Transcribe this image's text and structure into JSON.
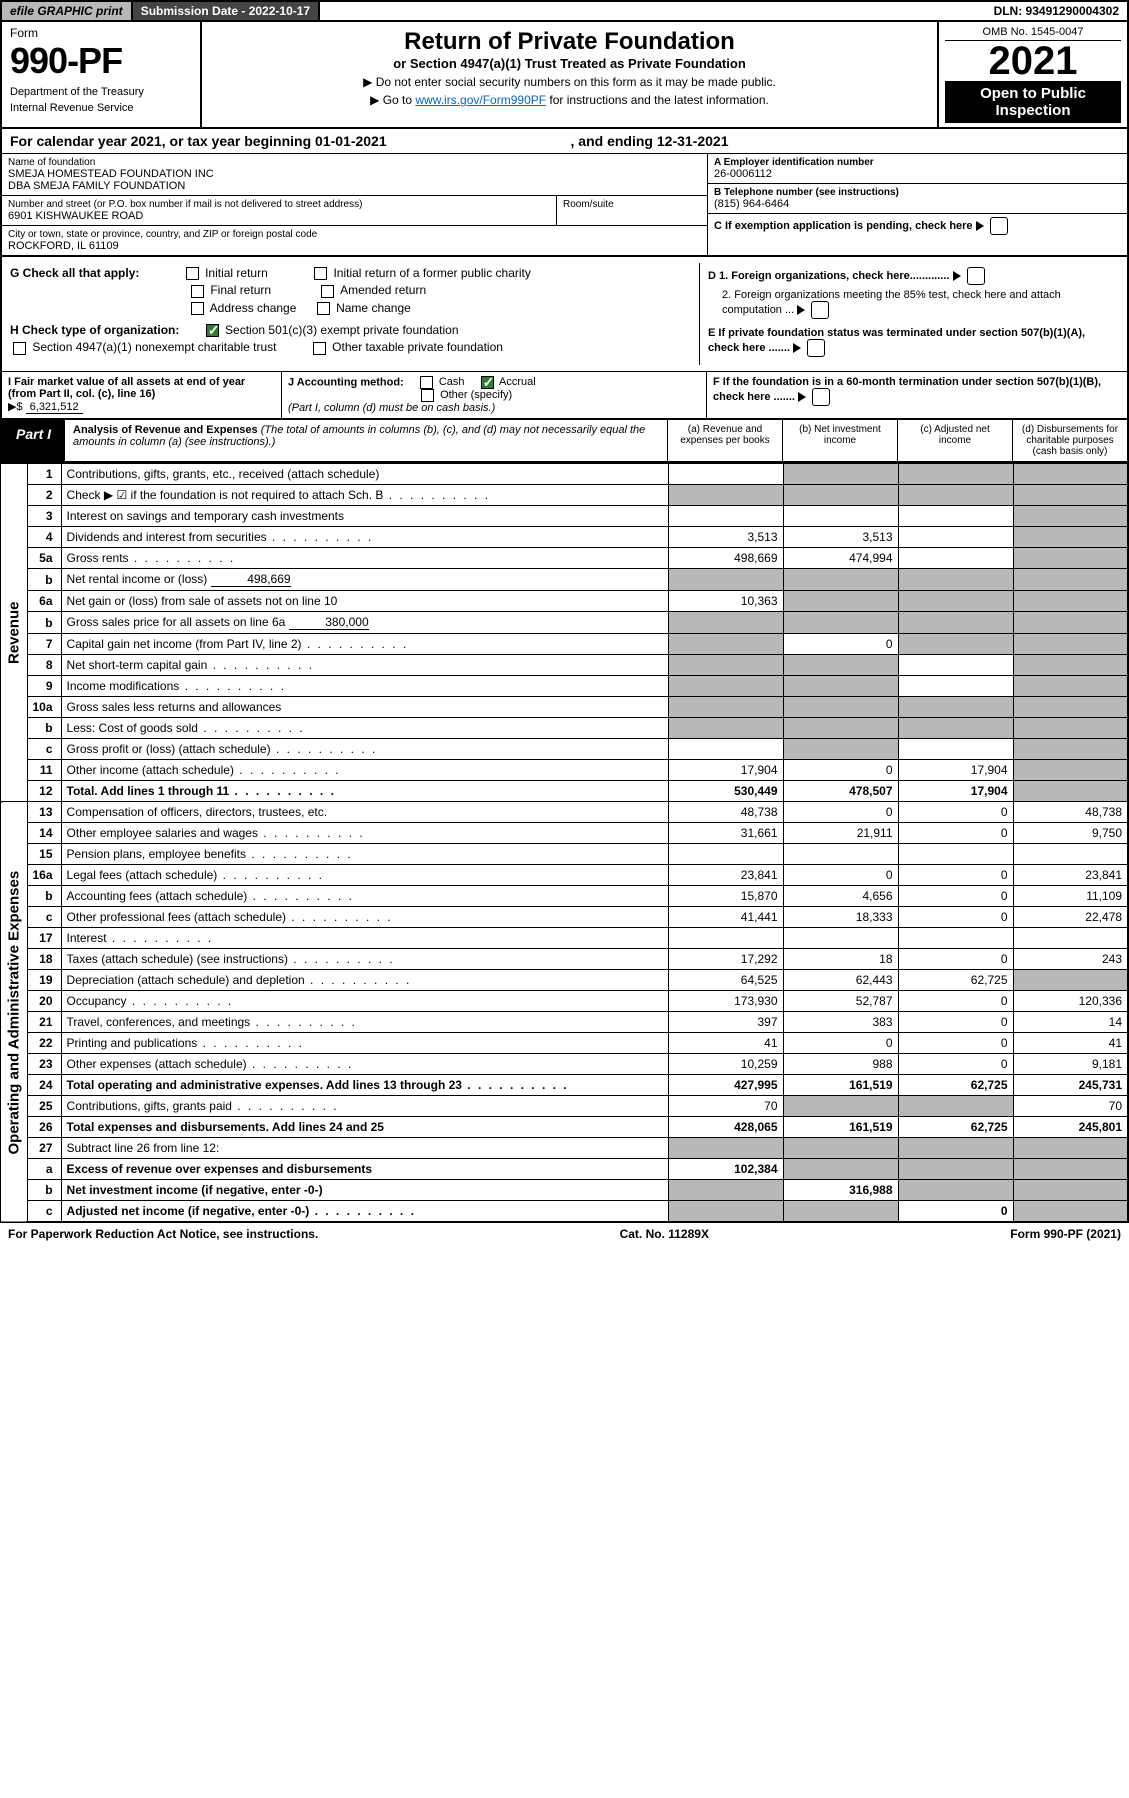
{
  "topbar": {
    "efile": "efile GRAPHIC print",
    "submission": "Submission Date - 2022-10-17",
    "dln": "DLN: 93491290004302"
  },
  "header": {
    "form_word": "Form",
    "form_num": "990-PF",
    "dept": "Department of the Treasury",
    "irs": "Internal Revenue Service",
    "title": "Return of Private Foundation",
    "subtitle": "or Section 4947(a)(1) Trust Treated as Private Foundation",
    "note1": "▶ Do not enter social security numbers on this form as it may be made public.",
    "note2_pre": "▶ Go to ",
    "note2_link": "www.irs.gov/Form990PF",
    "note2_post": " for instructions and the latest information.",
    "omb": "OMB No. 1545-0047",
    "year": "2021",
    "open": "Open to Public Inspection"
  },
  "calyear": {
    "text_pre": "For calendar year 2021, or tax year beginning ",
    "begin": "01-01-2021",
    "text_mid": " , and ending ",
    "end": "12-31-2021"
  },
  "info": {
    "name_lbl": "Name of foundation",
    "name1": "SMEJA HOMESTEAD FOUNDATION INC",
    "name2": "DBA SMEJA FAMILY FOUNDATION",
    "addr_lbl": "Number and street (or P.O. box number if mail is not delivered to street address)",
    "addr": "6901 KISHWAUKEE ROAD",
    "room_lbl": "Room/suite",
    "city_lbl": "City or town, state or province, country, and ZIP or foreign postal code",
    "city": "ROCKFORD, IL  61109",
    "a_lbl": "A Employer identification number",
    "a_val": "26-0006112",
    "b_lbl": "B Telephone number (see instructions)",
    "b_val": "(815) 964-6464",
    "c_lbl": "C If exemption application is pending, check here",
    "d1": "D 1. Foreign organizations, check here.............",
    "d2": "2. Foreign organizations meeting the 85% test, check here and attach computation ...",
    "e": "E  If private foundation status was terminated under section 507(b)(1)(A), check here .......",
    "f": "F  If the foundation is in a 60-month termination under section 507(b)(1)(B), check here ......."
  },
  "g": {
    "label": "G Check all that apply:",
    "opts": [
      "Initial return",
      "Initial return of a former public charity",
      "Final return",
      "Amended return",
      "Address change",
      "Name change"
    ]
  },
  "h": {
    "label": "H Check type of organization:",
    "opt1": "Section 501(c)(3) exempt private foundation",
    "opt2": "Section 4947(a)(1) nonexempt charitable trust",
    "opt3": "Other taxable private foundation"
  },
  "i": {
    "label": "I Fair market value of all assets at end of year (from Part II, col. (c), line 16)",
    "arrow": "▶$",
    "val": "6,321,512"
  },
  "j": {
    "label": "J Accounting method:",
    "cash": "Cash",
    "accrual": "Accrual",
    "other": "Other (specify)",
    "note": "(Part I, column (d) must be on cash basis.)"
  },
  "part1": {
    "label": "Part I",
    "title": "Analysis of Revenue and Expenses",
    "desc": " (The total of amounts in columns (b), (c), and (d) may not necessarily equal the amounts in column (a) (see instructions).)",
    "col_a": "(a)   Revenue and expenses per books",
    "col_b": "(b)   Net investment income",
    "col_c": "(c)   Adjusted net income",
    "col_d": "(d)   Disbursements for charitable purposes (cash basis only)"
  },
  "vtabs": {
    "rev": "Revenue",
    "exp": "Operating and Administrative Expenses"
  },
  "rows": [
    {
      "n": "1",
      "d": "Contributions, gifts, grants, etc., received (attach schedule)",
      "a": "",
      "b": "g",
      "c": "g",
      "dd": "g"
    },
    {
      "n": "2",
      "d": "Check ▶ ☑ if the foundation is not required to attach Sch. B",
      "dots": true,
      "a": "g",
      "b": "g",
      "c": "g",
      "dd": "g"
    },
    {
      "n": "3",
      "d": "Interest on savings and temporary cash investments",
      "a": "",
      "b": "",
      "c": "",
      "dd": "g"
    },
    {
      "n": "4",
      "d": "Dividends and interest from securities",
      "dots": true,
      "a": "3,513",
      "b": "3,513",
      "c": "",
      "dd": "g"
    },
    {
      "n": "5a",
      "d": "Gross rents",
      "dots": true,
      "a": "498,669",
      "b": "474,994",
      "c": "",
      "dd": "g"
    },
    {
      "n": "b",
      "d": "Net rental income or (loss)",
      "inline": "498,669",
      "a": "g",
      "b": "g",
      "c": "g",
      "dd": "g"
    },
    {
      "n": "6a",
      "d": "Net gain or (loss) from sale of assets not on line 10",
      "a": "10,363",
      "b": "g",
      "c": "g",
      "dd": "g"
    },
    {
      "n": "b",
      "d": "Gross sales price for all assets on line 6a",
      "inline": "380,000",
      "a": "g",
      "b": "g",
      "c": "g",
      "dd": "g"
    },
    {
      "n": "7",
      "d": "Capital gain net income (from Part IV, line 2)",
      "dots": true,
      "a": "g",
      "b": "0",
      "c": "g",
      "dd": "g"
    },
    {
      "n": "8",
      "d": "Net short-term capital gain",
      "dots": true,
      "a": "g",
      "b": "g",
      "c": "",
      "dd": "g"
    },
    {
      "n": "9",
      "d": "Income modifications",
      "dots": true,
      "a": "g",
      "b": "g",
      "c": "",
      "dd": "g"
    },
    {
      "n": "10a",
      "d": "Gross sales less returns and allowances",
      "box": true,
      "a": "g",
      "b": "g",
      "c": "g",
      "dd": "g"
    },
    {
      "n": "b",
      "d": "Less: Cost of goods sold",
      "dots": true,
      "box": true,
      "a": "g",
      "b": "g",
      "c": "g",
      "dd": "g"
    },
    {
      "n": "c",
      "d": "Gross profit or (loss) (attach schedule)",
      "dots": true,
      "a": "",
      "b": "g",
      "c": "",
      "dd": "g"
    },
    {
      "n": "11",
      "d": "Other income (attach schedule)",
      "dots": true,
      "a": "17,904",
      "b": "0",
      "c": "17,904",
      "dd": "g"
    },
    {
      "n": "12",
      "d": "Total. Add lines 1 through 11",
      "dots": true,
      "bold": true,
      "a": "530,449",
      "b": "478,507",
      "c": "17,904",
      "dd": "g"
    }
  ],
  "rows_exp": [
    {
      "n": "13",
      "d": "Compensation of officers, directors, trustees, etc.",
      "a": "48,738",
      "b": "0",
      "c": "0",
      "dd": "48,738"
    },
    {
      "n": "14",
      "d": "Other employee salaries and wages",
      "dots": true,
      "a": "31,661",
      "b": "21,911",
      "c": "0",
      "dd": "9,750"
    },
    {
      "n": "15",
      "d": "Pension plans, employee benefits",
      "dots": true,
      "a": "",
      "b": "",
      "c": "",
      "dd": ""
    },
    {
      "n": "16a",
      "d": "Legal fees (attach schedule)",
      "dots": true,
      "a": "23,841",
      "b": "0",
      "c": "0",
      "dd": "23,841"
    },
    {
      "n": "b",
      "d": "Accounting fees (attach schedule)",
      "dots": true,
      "a": "15,870",
      "b": "4,656",
      "c": "0",
      "dd": "11,109"
    },
    {
      "n": "c",
      "d": "Other professional fees (attach schedule)",
      "dots": true,
      "a": "41,441",
      "b": "18,333",
      "c": "0",
      "dd": "22,478"
    },
    {
      "n": "17",
      "d": "Interest",
      "dots": true,
      "a": "",
      "b": "",
      "c": "",
      "dd": ""
    },
    {
      "n": "18",
      "d": "Taxes (attach schedule) (see instructions)",
      "dots": true,
      "a": "17,292",
      "b": "18",
      "c": "0",
      "dd": "243"
    },
    {
      "n": "19",
      "d": "Depreciation (attach schedule) and depletion",
      "dots": true,
      "a": "64,525",
      "b": "62,443",
      "c": "62,725",
      "dd": "g"
    },
    {
      "n": "20",
      "d": "Occupancy",
      "dots": true,
      "a": "173,930",
      "b": "52,787",
      "c": "0",
      "dd": "120,336"
    },
    {
      "n": "21",
      "d": "Travel, conferences, and meetings",
      "dots": true,
      "a": "397",
      "b": "383",
      "c": "0",
      "dd": "14"
    },
    {
      "n": "22",
      "d": "Printing and publications",
      "dots": true,
      "a": "41",
      "b": "0",
      "c": "0",
      "dd": "41"
    },
    {
      "n": "23",
      "d": "Other expenses (attach schedule)",
      "dots": true,
      "a": "10,259",
      "b": "988",
      "c": "0",
      "dd": "9,181"
    },
    {
      "n": "24",
      "d": "Total operating and administrative expenses. Add lines 13 through 23",
      "dots": true,
      "bold": true,
      "a": "427,995",
      "b": "161,519",
      "c": "62,725",
      "dd": "245,731"
    },
    {
      "n": "25",
      "d": "Contributions, gifts, grants paid",
      "dots": true,
      "a": "70",
      "b": "g",
      "c": "g",
      "dd": "70"
    },
    {
      "n": "26",
      "d": "Total expenses and disbursements. Add lines 24 and 25",
      "bold": true,
      "a": "428,065",
      "b": "161,519",
      "c": "62,725",
      "dd": "245,801"
    },
    {
      "n": "27",
      "d": "Subtract line 26 from line 12:",
      "a": "g",
      "b": "g",
      "c": "g",
      "dd": "g"
    },
    {
      "n": "a",
      "d": "Excess of revenue over expenses and disbursements",
      "bold": true,
      "a": "102,384",
      "b": "g",
      "c": "g",
      "dd": "g"
    },
    {
      "n": "b",
      "d": "Net investment income (if negative, enter -0-)",
      "bold": true,
      "a": "g",
      "b": "316,988",
      "c": "g",
      "dd": "g"
    },
    {
      "n": "c",
      "d": "Adjusted net income (if negative, enter -0-)",
      "dots": true,
      "bold": true,
      "a": "g",
      "b": "g",
      "c": "0",
      "dd": "g"
    }
  ],
  "footer": {
    "left": "For Paperwork Reduction Act Notice, see instructions.",
    "mid": "Cat. No. 11289X",
    "right": "Form 990-PF (2021)"
  },
  "colors": {
    "grey": "#b8b8b8",
    "dark": "#444444",
    "green": "#2e7d32",
    "link": "#0066cc"
  }
}
